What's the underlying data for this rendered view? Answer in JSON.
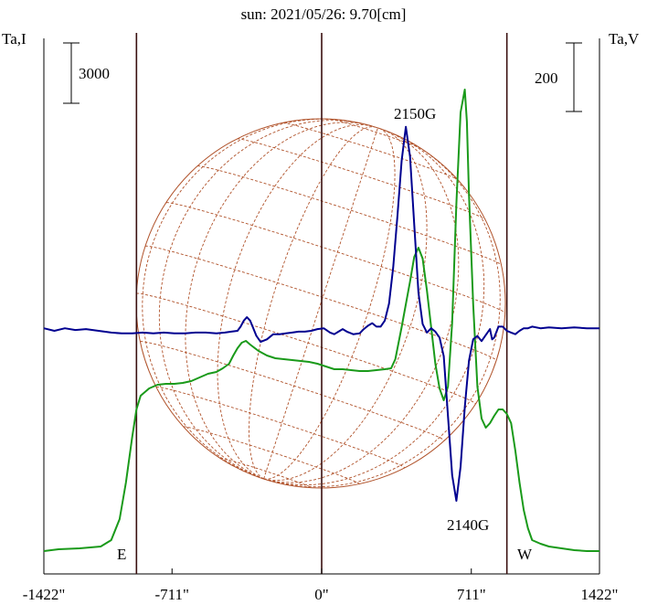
{
  "chart_data": {
    "type": "line",
    "title": "sun: 2021/05/26: 9.70[cm]",
    "ylabel_left": "Ta,I",
    "ylabel_right": "Ta,V",
    "scale_left": "3000",
    "scale_right": "200",
    "x_ticks": [
      {
        "value": -1422,
        "label": "-1422\""
      },
      {
        "value": -711,
        "label": "-711\""
      },
      {
        "value": 0,
        "label": "0\""
      },
      {
        "value": 711,
        "label": "711\""
      },
      {
        "value": 1422,
        "label": "1422\""
      }
    ],
    "xlim": [
      -1320,
      1320
    ],
    "markers": [
      {
        "label": "E",
        "x": -880
      },
      {
        "label": "W",
        "x": 880
      }
    ],
    "annotations": [
      {
        "text": "2150G"
      },
      {
        "text": "2140G"
      }
    ],
    "colors": {
      "intensity": "#1a9a1a",
      "polarization": "#000090",
      "disk": "#b0522a",
      "frame": "#000000",
      "vlines": "#3a1010"
    },
    "series": [
      {
        "key": "intensity",
        "x": [
          -1320,
          -1250,
          -1150,
          -1050,
          -1000,
          -960,
          -930,
          -900,
          -880,
          -860,
          -820,
          -780,
          -740,
          -700,
          -660,
          -620,
          -580,
          -540,
          -500,
          -470,
          -440,
          -420,
          -400,
          -380,
          -360,
          -340,
          -300,
          -260,
          -220,
          -180,
          -140,
          -100,
          -60,
          -20,
          20,
          60,
          100,
          140,
          180,
          220,
          260,
          300,
          330,
          350,
          380,
          420,
          440,
          460,
          480,
          500,
          520,
          540,
          560,
          580,
          600,
          620,
          640,
          660,
          680,
          690,
          700,
          720,
          740,
          760,
          780,
          800,
          820,
          840,
          860,
          880,
          900,
          920,
          940,
          960,
          980,
          1000,
          1040,
          1080,
          1140,
          1200,
          1260,
          1320
        ],
        "y": [
          0,
          2,
          3,
          5,
          12,
          35,
          75,
          125,
          155,
          170,
          178,
          182,
          183,
          183,
          184,
          186,
          190,
          194,
          196,
          200,
          205,
          214,
          222,
          228,
          230,
          226,
          219,
          214,
          211,
          210,
          209,
          208,
          207,
          205,
          202,
          199,
          199,
          198,
          197,
          197,
          198,
          199,
          200,
          210,
          245,
          295,
          322,
          332,
          320,
          285,
          245,
          205,
          178,
          165,
          180,
          250,
          380,
          480,
          505,
          470,
          390,
          270,
          180,
          145,
          135,
          140,
          148,
          155,
          155,
          150,
          140,
          110,
          75,
          45,
          25,
          12,
          8,
          5,
          3,
          1,
          0,
          0
        ]
      },
      {
        "key": "polarization",
        "x": [
          -1320,
          -1270,
          -1220,
          -1170,
          -1120,
          -1060,
          -1000,
          -950,
          -900,
          -850,
          -800,
          -750,
          -700,
          -650,
          -600,
          -550,
          -500,
          -460,
          -430,
          -400,
          -385,
          -370,
          -355,
          -340,
          -325,
          -310,
          -290,
          -260,
          -230,
          -200,
          -170,
          -140,
          -110,
          -80,
          -50,
          -20,
          10,
          40,
          60,
          80,
          100,
          120,
          150,
          180,
          200,
          220,
          240,
          260,
          280,
          300,
          320,
          340,
          360,
          380,
          400,
          420,
          440,
          460,
          480,
          500,
          520,
          540,
          560,
          580,
          600,
          620,
          640,
          660,
          680,
          700,
          720,
          740,
          760,
          780,
          800,
          810,
          820,
          840,
          860,
          880,
          900,
          920,
          940,
          960,
          980,
          1000,
          1040,
          1080,
          1140,
          1200,
          1260,
          1320
        ],
        "y": [
          3,
          0,
          3,
          1,
          2,
          0,
          -2,
          -3,
          -3,
          -2,
          -3,
          -2,
          -3,
          -3,
          -2,
          -2,
          -3,
          -2,
          -1,
          0,
          5,
          12,
          16,
          12,
          3,
          -6,
          -13,
          -10,
          -4,
          -4,
          -3,
          -2,
          -1,
          -1,
          0,
          2,
          3,
          -2,
          -4,
          -1,
          2,
          -1,
          -4,
          -3,
          2,
          6,
          9,
          5,
          5,
          12,
          32,
          75,
          135,
          200,
          240,
          205,
          125,
          45,
          8,
          -2,
          3,
          -1,
          -8,
          -30,
          -100,
          -170,
          -200,
          -160,
          -90,
          -35,
          -10,
          -6,
          -12,
          -5,
          2,
          -10,
          -8,
          5,
          5,
          0,
          -2,
          -4,
          0,
          3,
          3,
          5,
          3,
          4,
          3,
          4,
          3,
          3
        ]
      }
    ]
  }
}
